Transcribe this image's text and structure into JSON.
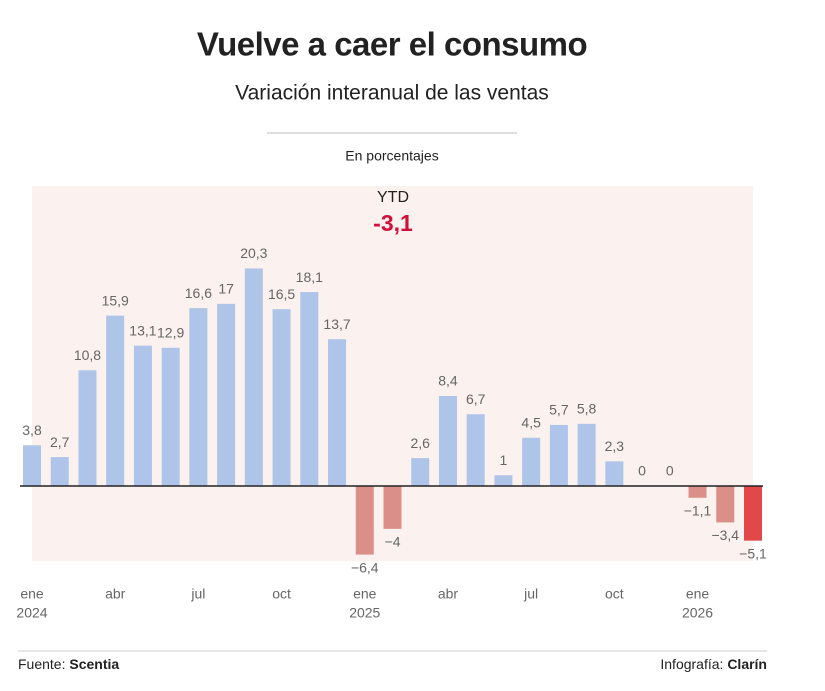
{
  "chart_data": {
    "type": "bar",
    "title": "Vuelve a caer el consumo",
    "subtitle": "Variación interanual de las ventas",
    "unit_label": "En porcentajes",
    "annotation": {
      "label": "YTD",
      "value": -3.1,
      "value_label": "-3,1",
      "color": "#d0103a"
    },
    "categories": [
      "ene",
      null,
      null,
      "abr",
      null,
      null,
      "jul",
      null,
      null,
      "oct",
      null,
      null,
      "ene",
      null,
      null,
      "abr",
      null,
      null,
      "jul",
      null,
      null,
      "oct",
      null,
      null,
      "ene",
      null,
      null
    ],
    "category_years": [
      "2024",
      null,
      null,
      null,
      null,
      null,
      null,
      null,
      null,
      null,
      null,
      null,
      "2025",
      null,
      null,
      null,
      null,
      null,
      null,
      null,
      null,
      null,
      null,
      null,
      "2026",
      null,
      null
    ],
    "values": [
      3.8,
      2.7,
      10.8,
      15.9,
      13.1,
      12.9,
      16.6,
      17,
      20.3,
      16.5,
      18.1,
      13.7,
      -6.4,
      -4,
      2.6,
      8.4,
      6.7,
      1,
      4.5,
      5.7,
      5.8,
      2.3,
      0,
      0,
      -1.1,
      -3.4,
      -5.1
    ],
    "value_labels": [
      "3,8",
      "2,7",
      "10,8",
      "15,9",
      "13,1",
      "12,9",
      "16,6",
      "17",
      "20,3",
      "16,5",
      "18,1",
      "13,7",
      "−6,4",
      "−4",
      "2,6",
      "8,4",
      "6,7",
      "1",
      "4,5",
      "5,7",
      "5,8",
      "2,3",
      "0",
      "0",
      "−1,1",
      "−3,4",
      "−5,1"
    ],
    "colors": [
      "#aec4e8",
      "#aec4e8",
      "#aec4e8",
      "#aec4e8",
      "#aec4e8",
      "#aec4e8",
      "#aec4e8",
      "#aec4e8",
      "#aec4e8",
      "#aec4e8",
      "#aec4e8",
      "#aec4e8",
      "#da8f88",
      "#da8f88",
      "#aec4e8",
      "#aec4e8",
      "#aec4e8",
      "#aec4e8",
      "#aec4e8",
      "#aec4e8",
      "#aec4e8",
      "#aec4e8",
      "#aec4e8",
      "#aec4e8",
      "#da8f88",
      "#da8f88",
      "#e2474a"
    ],
    "ylim": [
      -7,
      28
    ],
    "background": "#fbf1ee",
    "source": {
      "label": "Fuente:",
      "name": "Scentia"
    },
    "credit": {
      "label": "Infografía:",
      "name": "Clarín"
    }
  }
}
